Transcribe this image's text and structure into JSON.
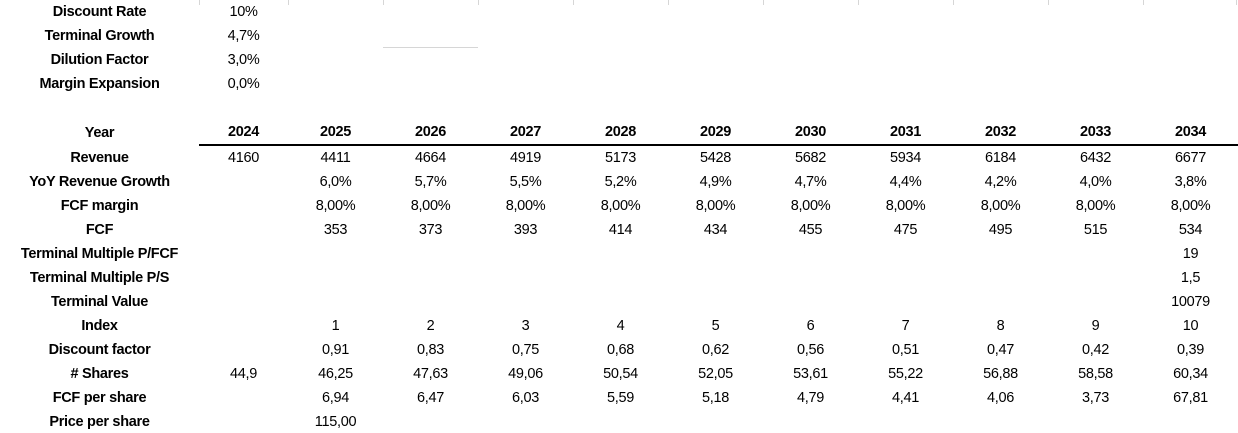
{
  "assumptions": {
    "items": [
      {
        "label": "Discount Rate",
        "value": "10%"
      },
      {
        "label": "Terminal Growth",
        "value": "4,7%"
      },
      {
        "label": "Dilution Factor",
        "value": "3,0%"
      },
      {
        "label": "Margin Expansion",
        "value": "0,0%"
      }
    ]
  },
  "table": {
    "year_row": {
      "label": "Year",
      "base_year": "2024",
      "forecast_years": [
        "2025",
        "2026",
        "2027",
        "2028",
        "2029",
        "2030",
        "2031",
        "2032",
        "2033",
        "2034"
      ]
    },
    "rows": [
      {
        "label": "Revenue",
        "values": [
          "4160",
          "4411",
          "4664",
          "4919",
          "5173",
          "5428",
          "5682",
          "5934",
          "6184",
          "6432",
          "6677"
        ]
      },
      {
        "label": "YoY Revenue Growth",
        "values": [
          "",
          "6,0%",
          "5,7%",
          "5,5%",
          "5,2%",
          "4,9%",
          "4,7%",
          "4,4%",
          "4,2%",
          "4,0%",
          "3,8%"
        ]
      },
      {
        "label": "FCF margin",
        "values": [
          "",
          "8,00%",
          "8,00%",
          "8,00%",
          "8,00%",
          "8,00%",
          "8,00%",
          "8,00%",
          "8,00%",
          "8,00%",
          "8,00%"
        ]
      },
      {
        "label": "FCF",
        "values": [
          "",
          "353",
          "373",
          "393",
          "414",
          "434",
          "455",
          "475",
          "495",
          "515",
          "534"
        ]
      },
      {
        "label": "Terminal Multiple P/FCF",
        "values": [
          "",
          "",
          "",
          "",
          "",
          "",
          "",
          "",
          "",
          "",
          "19"
        ]
      },
      {
        "label": "Terminal Multiple P/S",
        "values": [
          "",
          "",
          "",
          "",
          "",
          "",
          "",
          "",
          "",
          "",
          "1,5"
        ]
      },
      {
        "label": "Terminal Value",
        "values": [
          "",
          "",
          "",
          "",
          "",
          "",
          "",
          "",
          "",
          "",
          "10079"
        ]
      },
      {
        "label": "Index",
        "values": [
          "",
          "1",
          "2",
          "3",
          "4",
          "5",
          "6",
          "7",
          "8",
          "9",
          "10"
        ]
      },
      {
        "label": "Discount factor",
        "values": [
          "",
          "0,91",
          "0,83",
          "0,75",
          "0,68",
          "0,62",
          "0,56",
          "0,51",
          "0,47",
          "0,42",
          "0,39"
        ]
      },
      {
        "label": "# Shares",
        "values": [
          "44,9",
          "46,25",
          "47,63",
          "49,06",
          "50,54",
          "52,05",
          "53,61",
          "55,22",
          "56,88",
          "58,58",
          "60,34"
        ]
      },
      {
        "label": "FCF per share",
        "values": [
          "",
          "6,94",
          "6,47",
          "6,03",
          "5,59",
          "5,18",
          "4,79",
          "4,41",
          "4,06",
          "3,73",
          "67,81"
        ]
      },
      {
        "label": "Price per share",
        "values": [
          "",
          "115,00",
          "",
          "",
          "",
          "",
          "",
          "",
          "",
          "",
          ""
        ]
      }
    ]
  },
  "colors": {
    "base_year_orange": "#E97132",
    "forecast_year_blue": "#2E9BD6",
    "year_underline_black": "#000000",
    "gridline_gray": "#D6D6D6"
  }
}
